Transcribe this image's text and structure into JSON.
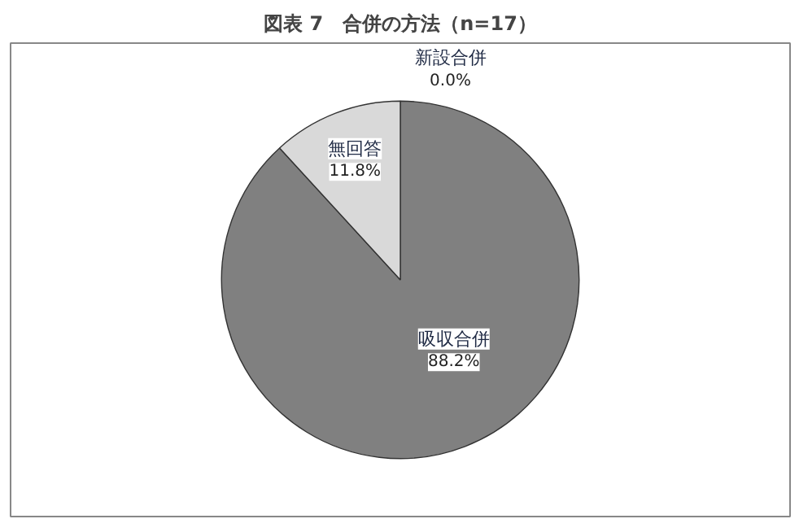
{
  "chart_data": {
    "type": "pie",
    "title": "図表 7　合併の方法（n=17）",
    "categories": [
      "吸収合併",
      "無回答",
      "新設合併"
    ],
    "values": [
      88.2,
      11.8,
      0.0
    ],
    "colors": [
      "#808080",
      "#d9d9d9",
      "#404040"
    ],
    "value_labels": [
      "88.2%",
      "11.8%",
      "0.0%"
    ]
  }
}
